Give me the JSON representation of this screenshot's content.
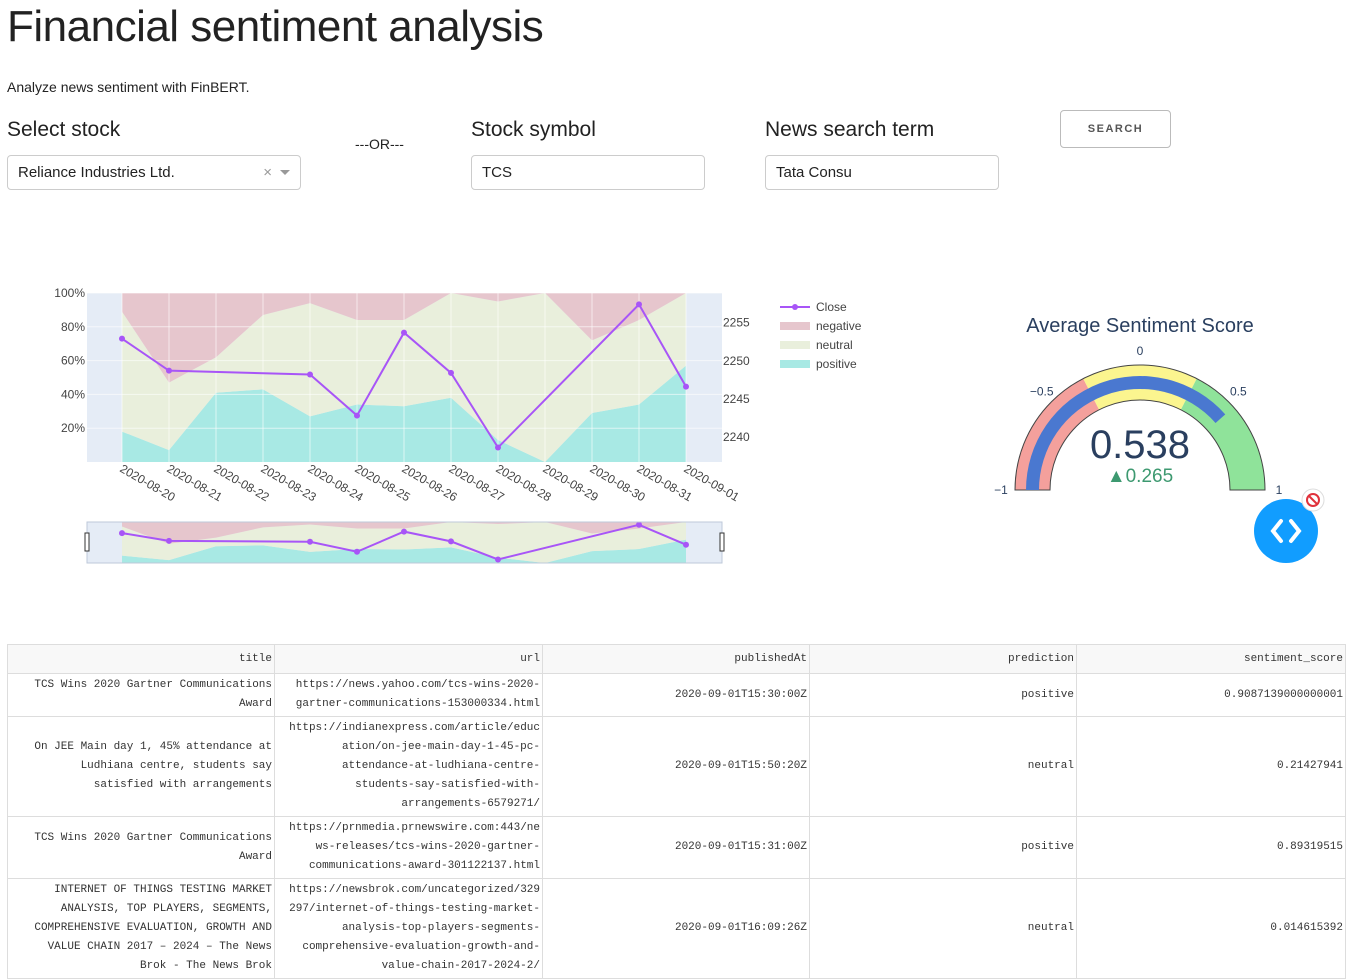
{
  "header": {
    "title": "Financial sentiment analysis",
    "subtitle": "Analyze news sentiment with FinBERT."
  },
  "controls": {
    "select_label": "Select stock",
    "select_value": "Reliance Industries Ltd.",
    "or": "---OR---",
    "symbol_label": "Stock symbol",
    "symbol_value": "TCS",
    "search_label": "News search term",
    "search_value": "Tata Consu",
    "button": "SEARCH"
  },
  "chart_data": [
    {
      "type": "area",
      "categories": [
        "2020-08-20",
        "2020-08-21",
        "2020-08-22",
        "2020-08-23",
        "2020-08-24",
        "2020-08-25",
        "2020-08-26",
        "2020-08-27",
        "2020-08-28",
        "2020-08-29",
        "2020-08-30",
        "2020-08-31",
        "2020-09-01"
      ],
      "series": [
        {
          "name": "positive",
          "color": "#a8e9e4",
          "values": [
            18,
            7,
            41,
            43,
            27,
            34,
            33,
            38,
            13,
            0,
            29,
            34,
            57
          ]
        },
        {
          "name": "neutral",
          "color": "#e9efdc",
          "values": [
            71,
            40,
            21,
            44,
            67,
            50,
            51,
            62,
            82,
            100,
            43,
            50,
            43
          ]
        },
        {
          "name": "negative",
          "color": "#e6c6cd",
          "values": [
            11,
            53,
            38,
            13,
            6,
            16,
            16,
            0,
            5,
            0,
            28,
            16,
            0
          ]
        }
      ],
      "close": {
        "name": "Close",
        "color": "#a855f7",
        "axis": "y2",
        "x": [
          "2020-08-20",
          "2020-08-21",
          "2020-08-24",
          "2020-08-25",
          "2020-08-26",
          "2020-08-27",
          "2020-08-28",
          "2020-08-31",
          "2020-09-01"
        ],
        "values": [
          2252.9,
          2248.7,
          2248.2,
          2242.8,
          2253.7,
          2248.4,
          2238.6,
          2257.4,
          2246.6
        ]
      },
      "ylim": [
        0,
        100
      ],
      "yticks": [
        {
          "value": 20,
          "label": "20%"
        },
        {
          "value": 40,
          "label": "40%"
        },
        {
          "value": 60,
          "label": "60%"
        },
        {
          "value": 80,
          "label": "80%"
        },
        {
          "value": 100,
          "label": "100%"
        }
      ],
      "y2lim": [
        2236.7,
        2258.9
      ],
      "y2ticks": [
        2240,
        2245,
        2250,
        2255
      ],
      "grid": true
    },
    {
      "type": "gauge",
      "title": "Average Sentiment Score",
      "value": 0.538,
      "delta": {
        "value": 0.265,
        "label": "▲0.265"
      },
      "range": [
        -1,
        1
      ],
      "ticks": [
        {
          "value": -1,
          "label": "−1"
        },
        {
          "value": -0.5,
          "label": "−0.5"
        },
        0,
        0.5,
        1
      ],
      "bar_color": "#4a78d0",
      "steps": [
        {
          "range": [
            -1,
            -0.3
          ],
          "color": "#f4a09c"
        },
        {
          "range": [
            -0.3,
            0.3
          ],
          "color": "#fbf58f"
        },
        {
          "range": [
            0.3,
            1
          ],
          "color": "#8fe39a"
        }
      ]
    }
  ],
  "table": {
    "columns": [
      "title",
      "url",
      "publishedAt",
      "prediction",
      "sentiment_score"
    ],
    "rows": [
      [
        "TCS Wins 2020 Gartner Communications Award",
        "https://news.yahoo.com/tcs-wins-2020-gartner-communications-153000334.html",
        "2020-09-01T15:30:00Z",
        "positive",
        0.9087139000000001
      ],
      [
        "On JEE Main day 1, 45% attendance at Ludhiana centre, students say satisfied with arrangements",
        "https://indianexpress.com/article/education/on-jee-main-day-1-45-pc-attendance-at-ludhiana-centre-students-say-satisfied-with-arrangements-6579271/",
        "2020-09-01T15:50:20Z",
        "neutral",
        0.21427941
      ],
      [
        "TCS Wins 2020 Gartner Communications Award",
        "https://prnmedia.prnewswire.com:443/news-releases/tcs-wins-2020-gartner-communications-award-301122137.html",
        "2020-09-01T15:31:00Z",
        "positive",
        0.89319515
      ],
      [
        "INTERNET OF THINGS TESTING MARKET ANALYSIS, TOP PLAYERS, SEGMENTS, COMPREHENSIVE EVALUATION, GROWTH AND VALUE CHAIN 2017 – 2024 – The News Brok - The News Brok",
        "https://newsbrok.com/uncategorized/329297/internet-of-things-testing-market-analysis-top-players-segments-comprehensive-evaluation-growth-and-value-chain-2017-2024-2/",
        "2020-09-01T16:09:26Z",
        "neutral",
        0.014615392
      ]
    ]
  }
}
